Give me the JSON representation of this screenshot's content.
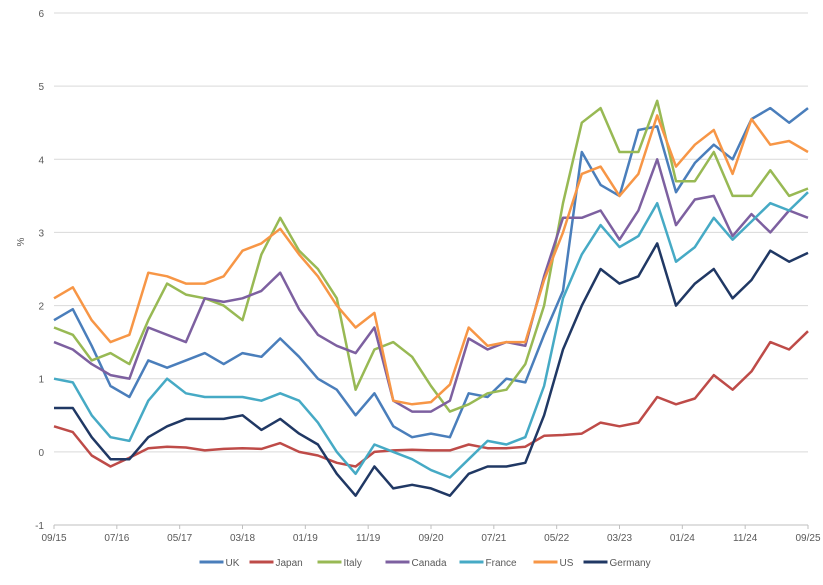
{
  "chart_data": {
    "type": "line",
    "title": "",
    "xlabel": "",
    "ylabel": "%",
    "ylim": [
      -1,
      6
    ],
    "yticks": [
      "-1",
      "0",
      "1",
      "2",
      "3",
      "4",
      "5",
      "6"
    ],
    "xtick_labels": [
      "09/15",
      "07/16",
      "05/17",
      "03/18",
      "01/19",
      "11/19",
      "09/20",
      "07/21",
      "05/22",
      "03/23",
      "01/24",
      "11/24",
      "09/25"
    ],
    "legend_position": "bottom",
    "grid": "horizontal",
    "x": [
      "09/15",
      "12/15",
      "03/16",
      "06/16",
      "09/16",
      "12/16",
      "03/17",
      "06/17",
      "09/17",
      "12/17",
      "03/18",
      "06/18",
      "09/18",
      "12/18",
      "03/19",
      "06/19",
      "09/19",
      "12/19",
      "03/20",
      "06/20",
      "09/20",
      "12/20",
      "03/21",
      "06/21",
      "09/21",
      "12/21",
      "03/22",
      "06/22",
      "09/22",
      "12/22",
      "03/23",
      "06/23",
      "09/23",
      "12/23",
      "03/24",
      "06/24",
      "09/24",
      "12/24",
      "03/25",
      "06/25",
      "09/25"
    ],
    "series": [
      {
        "name": "UK",
        "color": "#4A7EBB",
        "values": [
          1.8,
          1.95,
          1.45,
          0.9,
          0.75,
          1.25,
          1.15,
          1.25,
          1.35,
          1.2,
          1.35,
          1.3,
          1.55,
          1.3,
          1.0,
          0.85,
          0.5,
          0.8,
          0.35,
          0.2,
          0.25,
          0.2,
          0.8,
          0.75,
          1.0,
          0.95,
          1.6,
          2.2,
          4.1,
          3.65,
          3.5,
          4.4,
          4.45,
          3.55,
          3.95,
          4.2,
          4.0,
          4.55,
          4.7,
          4.5,
          4.7
        ]
      },
      {
        "name": "Japan",
        "color": "#BE4B48",
        "values": [
          0.35,
          0.27,
          -0.05,
          -0.2,
          -0.08,
          0.05,
          0.07,
          0.06,
          0.02,
          0.04,
          0.05,
          0.04,
          0.12,
          0.0,
          -0.05,
          -0.15,
          -0.2,
          0.0,
          0.02,
          0.03,
          0.02,
          0.02,
          0.1,
          0.05,
          0.05,
          0.07,
          0.22,
          0.23,
          0.25,
          0.4,
          0.35,
          0.4,
          0.75,
          0.65,
          0.73,
          1.05,
          0.85,
          1.1,
          1.5,
          1.4,
          1.65
        ]
      },
      {
        "name": "Italy",
        "color": "#98B954",
        "values": [
          1.7,
          1.6,
          1.25,
          1.35,
          1.2,
          1.8,
          2.3,
          2.15,
          2.1,
          2.0,
          1.8,
          2.7,
          3.2,
          2.75,
          2.5,
          2.1,
          0.85,
          1.4,
          1.5,
          1.3,
          0.9,
          0.55,
          0.65,
          0.8,
          0.85,
          1.2,
          2.0,
          3.4,
          4.5,
          4.7,
          4.1,
          4.1,
          4.8,
          3.7,
          3.7,
          4.1,
          3.5,
          3.5,
          3.85,
          3.5,
          3.6
        ]
      },
      {
        "name": "Canada",
        "color": "#7D60A0",
        "values": [
          1.5,
          1.4,
          1.2,
          1.05,
          1.0,
          1.7,
          1.6,
          1.5,
          2.1,
          2.05,
          2.1,
          2.2,
          2.45,
          1.95,
          1.6,
          1.45,
          1.35,
          1.7,
          0.7,
          0.55,
          0.55,
          0.7,
          1.55,
          1.4,
          1.5,
          1.45,
          2.4,
          3.2,
          3.2,
          3.3,
          2.9,
          3.3,
          4.0,
          3.1,
          3.45,
          3.5,
          2.95,
          3.25,
          3.0,
          3.3,
          3.2
        ]
      },
      {
        "name": "France",
        "color": "#46AAC5",
        "values": [
          1.0,
          0.95,
          0.5,
          0.2,
          0.15,
          0.7,
          1.0,
          0.8,
          0.75,
          0.75,
          0.75,
          0.7,
          0.8,
          0.7,
          0.4,
          0.0,
          -0.3,
          0.1,
          0.0,
          -0.1,
          -0.25,
          -0.35,
          -0.1,
          0.15,
          0.1,
          0.2,
          0.9,
          2.1,
          2.7,
          3.1,
          2.8,
          2.95,
          3.4,
          2.6,
          2.8,
          3.2,
          2.9,
          3.15,
          3.4,
          3.3,
          3.55
        ]
      },
      {
        "name": "US",
        "color": "#F79646",
        "values": [
          2.1,
          2.25,
          1.8,
          1.5,
          1.6,
          2.45,
          2.4,
          2.3,
          2.3,
          2.4,
          2.75,
          2.85,
          3.05,
          2.7,
          2.4,
          2.0,
          1.7,
          1.9,
          0.7,
          0.65,
          0.68,
          0.92,
          1.7,
          1.45,
          1.5,
          1.5,
          2.35,
          3.0,
          3.8,
          3.9,
          3.5,
          3.8,
          4.6,
          3.9,
          4.2,
          4.4,
          3.8,
          4.55,
          4.2,
          4.25,
          4.1
        ]
      },
      {
        "name": "Germany",
        "color": "#203864",
        "values": [
          0.6,
          0.6,
          0.2,
          -0.1,
          -0.1,
          0.2,
          0.35,
          0.45,
          0.45,
          0.45,
          0.5,
          0.3,
          0.45,
          0.25,
          0.1,
          -0.3,
          -0.6,
          -0.2,
          -0.5,
          -0.45,
          -0.5,
          -0.6,
          -0.3,
          -0.2,
          -0.2,
          -0.15,
          0.5,
          1.4,
          2.0,
          2.5,
          2.3,
          2.4,
          2.85,
          2.0,
          2.3,
          2.5,
          2.1,
          2.35,
          2.75,
          2.6,
          2.72
        ]
      }
    ]
  }
}
